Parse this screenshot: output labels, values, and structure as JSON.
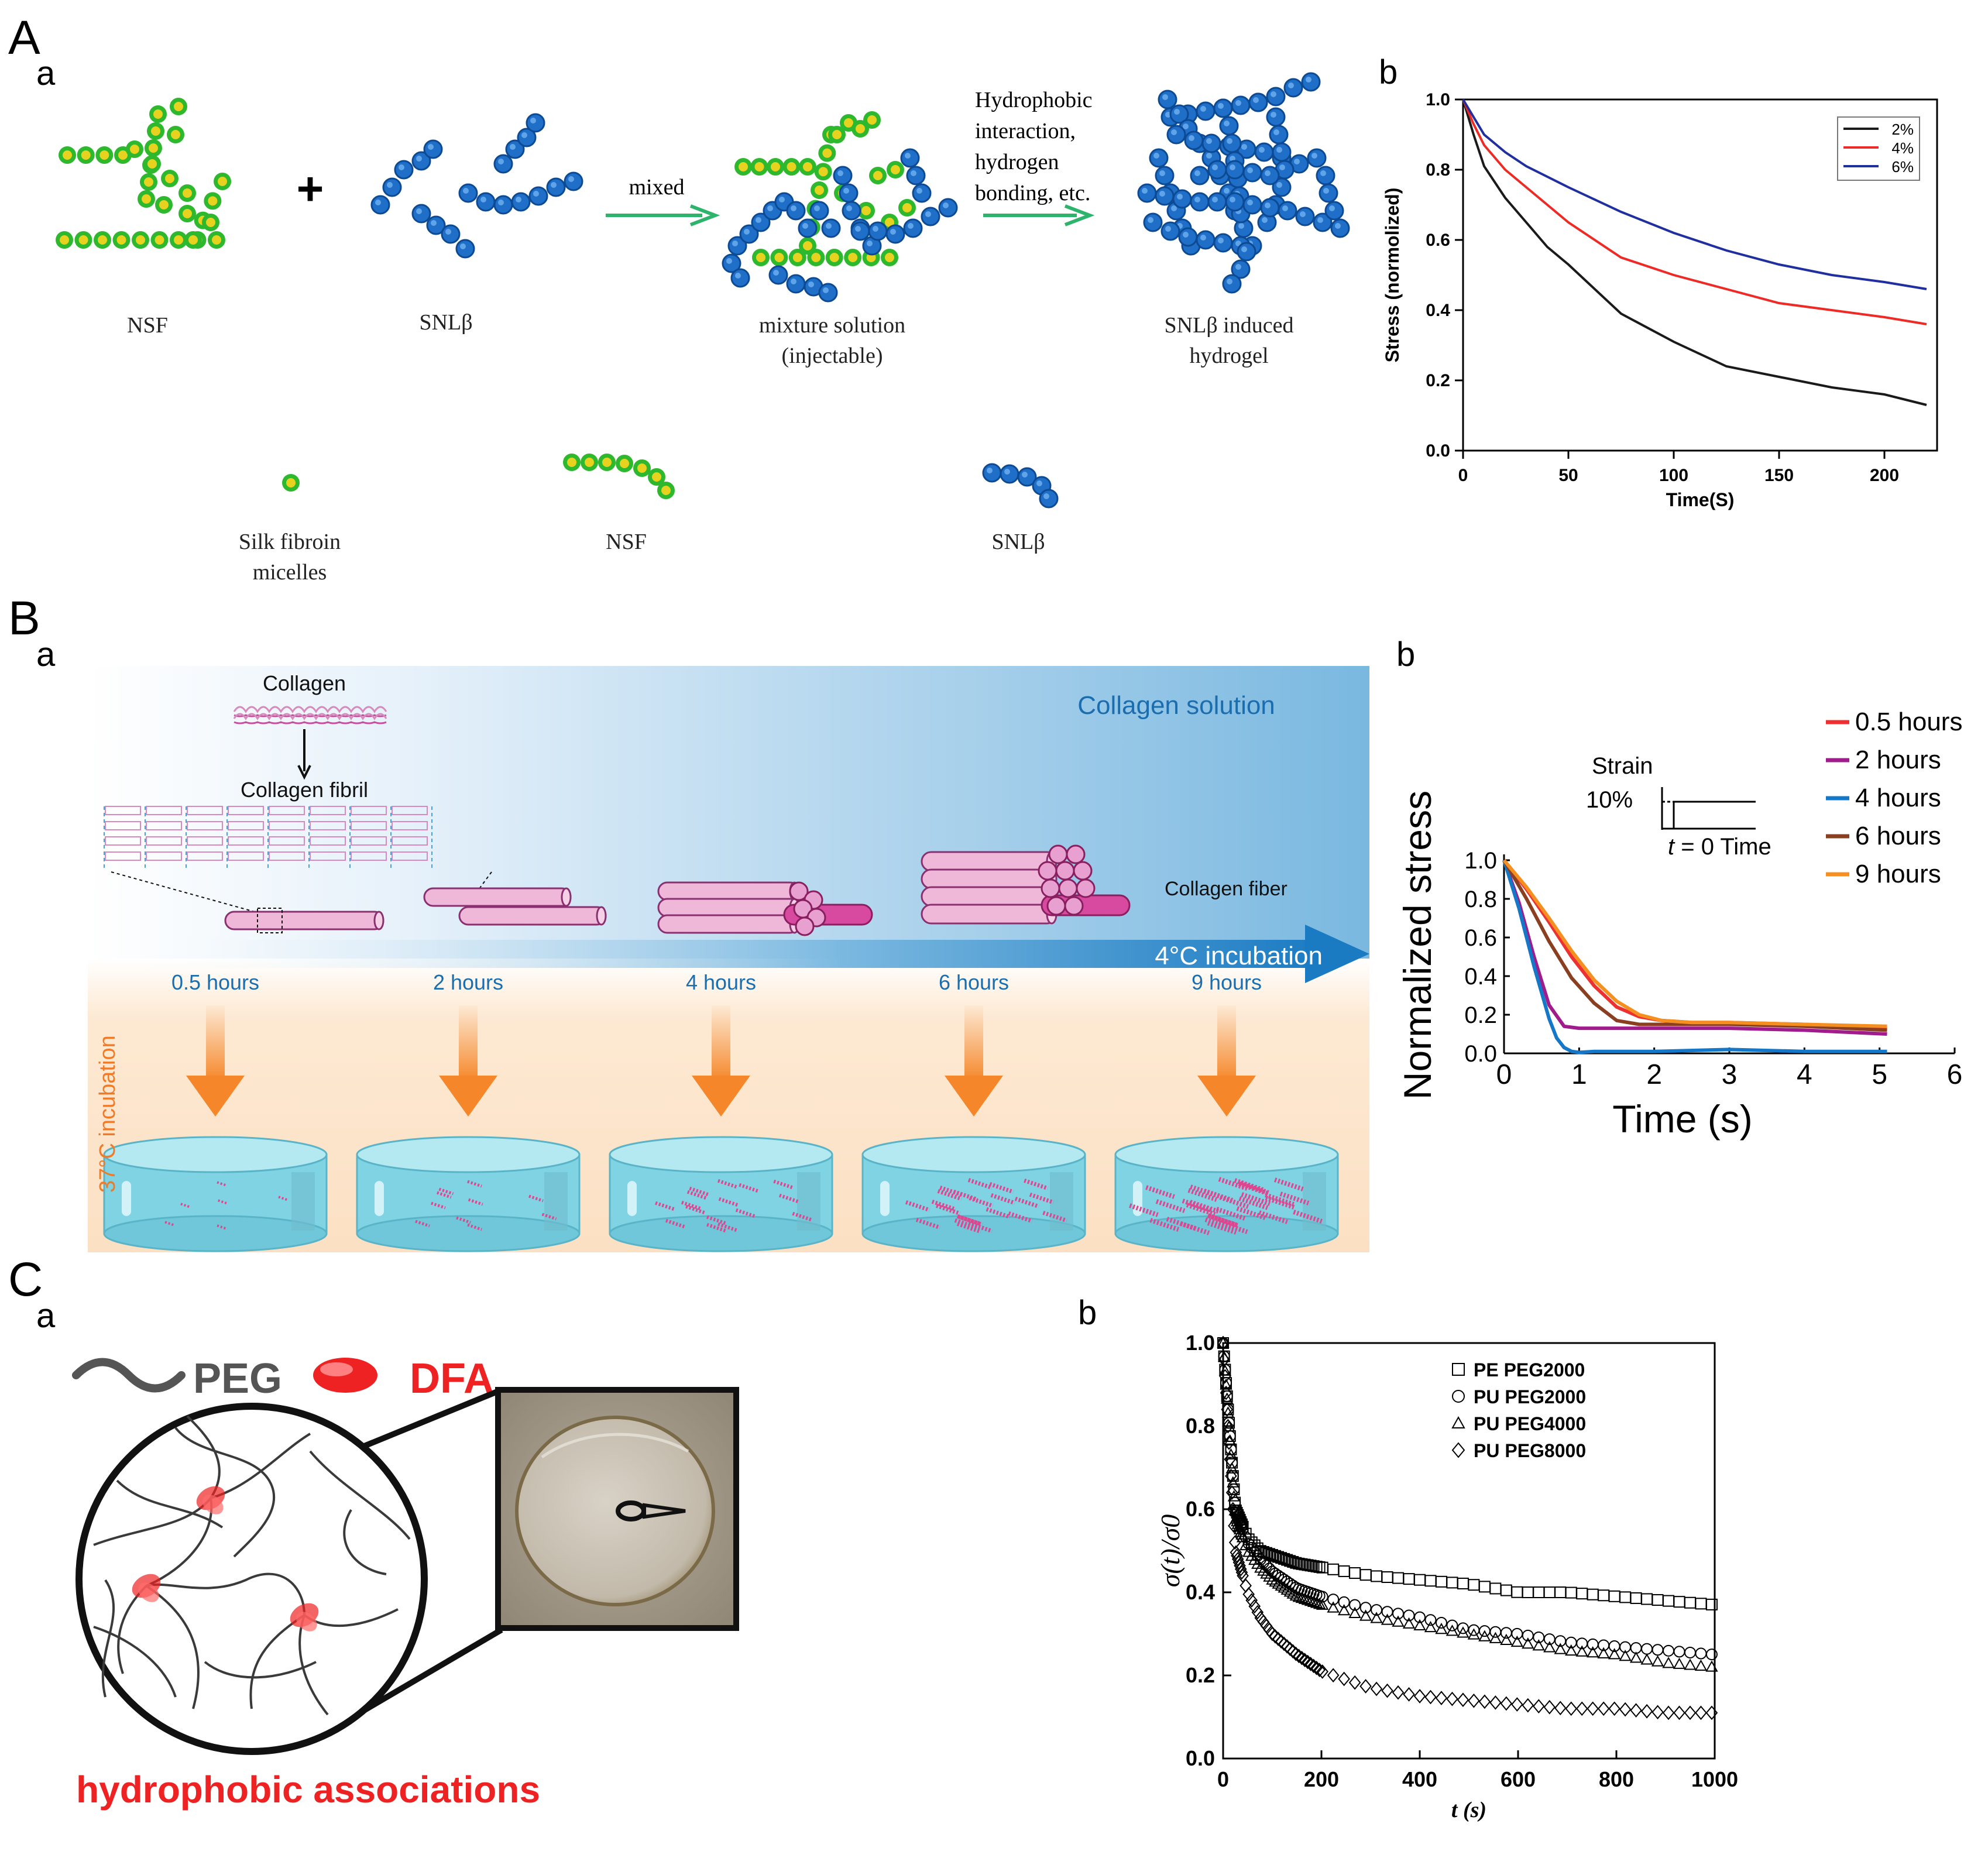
{
  "panels": {
    "A": {
      "letter": "A",
      "a": "a",
      "b": "b"
    },
    "B": {
      "letter": "B",
      "a": "a",
      "b": "b"
    },
    "C": {
      "letter": "C",
      "a": "a",
      "b": "b"
    }
  },
  "A_a": {
    "plus": "+",
    "arrow1_label": "mixed",
    "arrow2_label_lines": [
      "Hydrophobic",
      "interaction,",
      "hydrogen",
      "bonding, etc."
    ],
    "stage_labels": [
      "NSF",
      "SNLβ",
      "mixture solution\n(injectable)",
      "SNLβ induced\nhydrogel"
    ],
    "legend_labels": [
      "Silk fibroin\nmicelles",
      "NSF",
      "SNLβ"
    ],
    "colors": {
      "green": "#2eb82e",
      "yellow": "#e6d21f",
      "blue": "#1f6fc8",
      "blue_dark": "#0d4a94",
      "arrow": "#2db36b"
    }
  },
  "A_b": {
    "legend": [
      "2%",
      "4%",
      "6%"
    ],
    "colors": [
      "#1a1a1a",
      "#ee2a24",
      "#1f2fa0"
    ]
  },
  "B_a": {
    "collagen_label": "Collagen",
    "fibril_label": "Collagen fibril",
    "solution_label": "Collagen solution",
    "fiber_label": "Collagen fiber",
    "incubation_4c": "4°C incubation",
    "incubation_37c": "37°C incubation",
    "times": [
      "0.5 hours",
      "2 hours",
      "4 hours",
      "6 hours",
      "9 hours"
    ],
    "colors": {
      "blue_bg": "#7ab8e0",
      "time_text": "#1a6eb0",
      "orange_text": "#f07a26",
      "gel": "#7fd3e3",
      "fiber_pink": "#f0b8d8",
      "fiber_magenta": "#d84aa0"
    }
  },
  "B_b": {
    "inset_title": "Strain",
    "inset_strain": "10%",
    "inset_t": "t",
    "inset_t0": " = 0 Time",
    "legend": [
      "0.5 hours",
      "2 hours",
      "4 hours",
      "6 hours",
      "9 hours"
    ],
    "colors": [
      "#ee3030",
      "#a01c8c",
      "#1477c8",
      "#8a4020",
      "#f59020"
    ]
  },
  "C_a": {
    "peg_label": "PEG",
    "dfa_label": "DFA",
    "caption": "hydrophobic associations",
    "colors": {
      "red": "#ee2222",
      "gray": "#555555"
    }
  },
  "C_b": {
    "legend": [
      "PE PEG2000",
      "PU PEG2000",
      "PU PEG4000",
      "PU PEG8000"
    ],
    "markers": [
      "square",
      "circle",
      "triangle",
      "diamond"
    ]
  },
  "chart_data": [
    {
      "id": "A_b",
      "type": "line",
      "title": "",
      "xlabel": "Time(S)",
      "ylabel": "Stress (normolized)",
      "xlim": [
        0,
        225
      ],
      "ylim": [
        0,
        1.0
      ],
      "xticks": [
        0,
        50,
        100,
        150,
        200
      ],
      "yticks": [
        0.0,
        0.2,
        0.4,
        0.6,
        0.8,
        1.0
      ],
      "legend_position": "top-right",
      "series": [
        {
          "name": "2%",
          "x": [
            0,
            5,
            10,
            20,
            30,
            40,
            50,
            75,
            100,
            125,
            150,
            175,
            200,
            220
          ],
          "y": [
            1.0,
            0.9,
            0.81,
            0.72,
            0.65,
            0.58,
            0.53,
            0.39,
            0.31,
            0.24,
            0.21,
            0.18,
            0.16,
            0.13
          ]
        },
        {
          "name": "4%",
          "x": [
            0,
            5,
            10,
            20,
            30,
            40,
            50,
            75,
            100,
            125,
            150,
            175,
            200,
            220
          ],
          "y": [
            1.0,
            0.93,
            0.87,
            0.8,
            0.75,
            0.7,
            0.65,
            0.55,
            0.5,
            0.46,
            0.42,
            0.4,
            0.38,
            0.36
          ]
        },
        {
          "name": "6%",
          "x": [
            0,
            5,
            10,
            20,
            30,
            40,
            50,
            75,
            100,
            125,
            150,
            175,
            200,
            220
          ],
          "y": [
            1.0,
            0.95,
            0.9,
            0.85,
            0.81,
            0.78,
            0.75,
            0.68,
            0.62,
            0.57,
            0.53,
            0.5,
            0.48,
            0.46
          ]
        }
      ]
    },
    {
      "id": "B_b",
      "type": "line",
      "title": "",
      "xlabel": "Time (s)",
      "ylabel": "Normalized stress",
      "xlim": [
        0,
        6
      ],
      "ylim": [
        0,
        1.0
      ],
      "xticks": [
        0,
        1,
        2,
        3,
        4,
        5,
        6
      ],
      "yticks": [
        0.0,
        0.2,
        0.4,
        0.6,
        0.8,
        1.0
      ],
      "legend_position": "top-right",
      "series": [
        {
          "name": "0.5 hours",
          "x": [
            0,
            0.3,
            0.6,
            0.9,
            1.2,
            1.5,
            1.8,
            2.1,
            2.5,
            3,
            4,
            5.1
          ],
          "y": [
            1.0,
            0.85,
            0.68,
            0.5,
            0.35,
            0.24,
            0.19,
            0.17,
            0.16,
            0.16,
            0.15,
            0.13
          ]
        },
        {
          "name": "2 hours",
          "x": [
            0,
            0.2,
            0.4,
            0.6,
            0.8,
            1.0,
            1.5,
            2,
            3,
            4,
            5.1
          ],
          "y": [
            1.0,
            0.78,
            0.5,
            0.25,
            0.14,
            0.13,
            0.13,
            0.13,
            0.13,
            0.12,
            0.1
          ]
        },
        {
          "name": "4 hours",
          "x": [
            0,
            0.2,
            0.4,
            0.6,
            0.7,
            0.8,
            0.9,
            1.0,
            1.2,
            2,
            3,
            4,
            5.1
          ],
          "y": [
            1.0,
            0.75,
            0.45,
            0.18,
            0.08,
            0.03,
            0.01,
            0.005,
            0.01,
            0.01,
            0.02,
            0.01,
            0.01
          ]
        },
        {
          "name": "6 hours",
          "x": [
            0,
            0.3,
            0.6,
            0.9,
            1.2,
            1.5,
            1.8,
            2.5,
            3,
            4,
            5.1
          ],
          "y": [
            1.0,
            0.8,
            0.58,
            0.39,
            0.26,
            0.17,
            0.15,
            0.15,
            0.15,
            0.14,
            0.12
          ]
        },
        {
          "name": "9 hours",
          "x": [
            0,
            0.3,
            0.6,
            0.9,
            1.2,
            1.5,
            1.8,
            2.1,
            2.5,
            3,
            4,
            5.1
          ],
          "y": [
            1.0,
            0.86,
            0.7,
            0.53,
            0.38,
            0.27,
            0.2,
            0.17,
            0.16,
            0.16,
            0.15,
            0.14
          ]
        }
      ]
    },
    {
      "id": "C_b",
      "type": "scatter",
      "title": "",
      "xlabel": "t (s)",
      "ylabel": "σ(t)/σ0",
      "xlim": [
        0,
        1000
      ],
      "ylim": [
        0,
        1.0
      ],
      "xticks": [
        0,
        200,
        400,
        600,
        800,
        1000
      ],
      "yticks": [
        0.0,
        0.2,
        0.4,
        0.6,
        0.8,
        1.0
      ],
      "legend_position": "top-right",
      "series": [
        {
          "name": "PE PEG2000",
          "x": [
            0,
            25,
            50,
            75,
            100,
            150,
            200,
            300,
            400,
            500,
            600,
            700,
            800,
            900,
            1000
          ],
          "y": [
            1.0,
            0.6,
            0.53,
            0.5,
            0.49,
            0.47,
            0.46,
            0.44,
            0.43,
            0.42,
            0.4,
            0.4,
            0.39,
            0.38,
            0.37
          ]
        },
        {
          "name": "PU PEG2000",
          "x": [
            0,
            25,
            50,
            75,
            100,
            150,
            200,
            300,
            400,
            500,
            600,
            700,
            800,
            900,
            1000
          ],
          "y": [
            1.0,
            0.6,
            0.52,
            0.48,
            0.45,
            0.41,
            0.39,
            0.36,
            0.34,
            0.31,
            0.3,
            0.28,
            0.27,
            0.26,
            0.25
          ]
        },
        {
          "name": "PU PEG4000",
          "x": [
            0,
            25,
            50,
            75,
            100,
            150,
            200,
            300,
            400,
            500,
            600,
            700,
            800,
            900,
            1000
          ],
          "y": [
            1.0,
            0.58,
            0.5,
            0.46,
            0.43,
            0.39,
            0.37,
            0.34,
            0.32,
            0.3,
            0.28,
            0.26,
            0.25,
            0.23,
            0.22
          ]
        },
        {
          "name": "PU PEG8000",
          "x": [
            0,
            25,
            50,
            75,
            100,
            150,
            200,
            250,
            300,
            400,
            500,
            600,
            700,
            800,
            900,
            1000
          ],
          "y": [
            1.0,
            0.5,
            0.4,
            0.34,
            0.3,
            0.25,
            0.21,
            0.19,
            0.17,
            0.15,
            0.14,
            0.13,
            0.12,
            0.12,
            0.11,
            0.11
          ]
        }
      ]
    }
  ]
}
